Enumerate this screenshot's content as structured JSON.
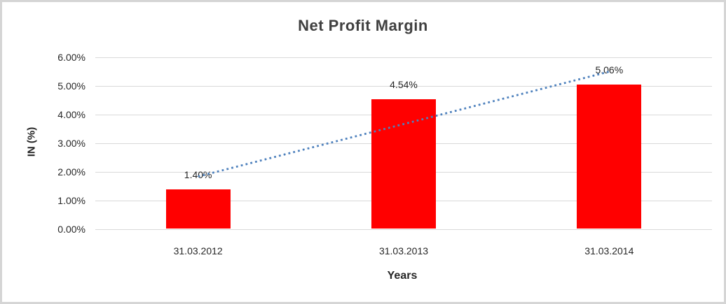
{
  "chart_data": {
    "type": "bar",
    "title": "Net Profit Margin",
    "xlabel": "Years",
    "ylabel": "IN (%)",
    "categories": [
      "31.03.2012",
      "31.03.2013",
      "31.03.2014"
    ],
    "values": [
      1.4,
      4.54,
      5.06
    ],
    "data_labels": [
      "1.40%",
      "4.54%",
      "5.06%"
    ],
    "y_ticks": [
      "0.00%",
      "1.00%",
      "2.00%",
      "3.00%",
      "4.00%",
      "5.00%",
      "6.00%"
    ],
    "ylim": [
      0,
      6
    ],
    "grid": true,
    "legend": "none",
    "bar_color": "#FF0000",
    "trendline": {
      "type": "linear",
      "style": "dotted",
      "color": "#4E81BD",
      "start_value": 1.84,
      "end_value": 5.5
    }
  },
  "colors": {
    "background": "#FFFFFF",
    "border": "#D5D5D5",
    "grid": "#D9D9D9",
    "title_text": "#404040",
    "tick_text": "#262626"
  }
}
